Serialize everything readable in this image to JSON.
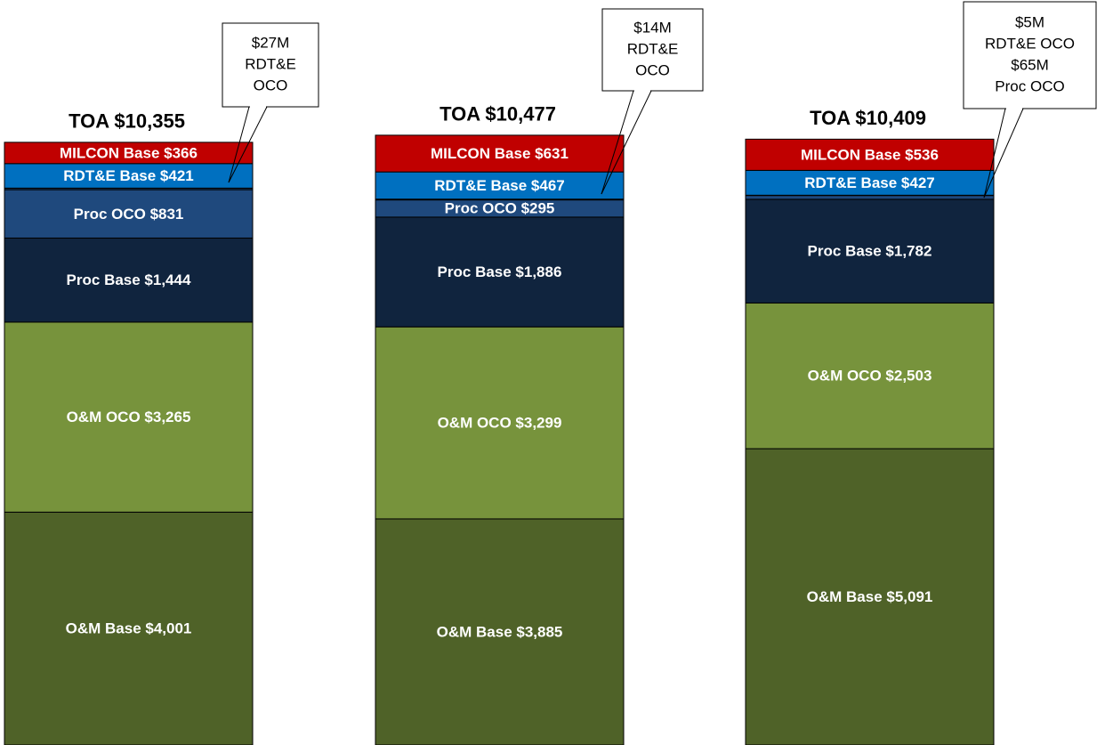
{
  "chart_data": {
    "type": "stacked-bar",
    "categories": [
      null,
      null,
      null
    ],
    "ylim": [
      0,
      12800
    ],
    "series": [
      {
        "color": "#4f6228",
        "values": [
          4001,
          3885,
          5091
        ],
        "value_labels": [
          "O&M Base $4,001",
          "O&M Base $3,885",
          "O&M Base $5,091"
        ]
      },
      {
        "color": "#77933c",
        "values": [
          3265,
          3299,
          2503
        ],
        "value_labels": [
          "O&M OCO $3,265",
          "O&M OCO $3,299",
          "O&M OCO $2,503"
        ]
      },
      {
        "color": "#10243e",
        "values": [
          1444,
          1886,
          1782
        ],
        "value_labels": [
          "Proc Base $1,444",
          "Proc Base $1,886",
          "Proc Base $1,782"
        ]
      },
      {
        "color": "#1f497d",
        "values": [
          831,
          295,
          65
        ],
        "value_labels": [
          "Proc OCO $831",
          "Proc OCO $295",
          null
        ]
      },
      {
        "color": "#17375e",
        "values": [
          27,
          14,
          5
        ],
        "value_labels": [
          null,
          null,
          null
        ]
      },
      {
        "color": "#0070c0",
        "values": [
          421,
          467,
          427
        ],
        "value_labels": [
          "RDT&E Base $421",
          "RDT&E Base $467",
          "RDT&E Base $427"
        ]
      },
      {
        "color": "#c00000",
        "values": [
          366,
          631,
          536
        ],
        "value_labels": [
          "MILCON Base $366",
          "MILCON Base $631",
          "MILCON Base $536"
        ]
      }
    ],
    "totals": [
      10355,
      10477,
      10409
    ],
    "total_labels": [
      "TOA $10,355",
      "TOA $10,477",
      "TOA $10,409"
    ],
    "annotations": [
      {
        "lines": [
          "$27M",
          "RDT&E",
          "OCO"
        ]
      },
      {
        "lines": [
          "$14M",
          "RDT&E",
          "OCO"
        ]
      },
      {
        "lines": [
          "$5M",
          "RDT&E OCO",
          "$65M",
          "Proc OCO"
        ]
      }
    ]
  }
}
